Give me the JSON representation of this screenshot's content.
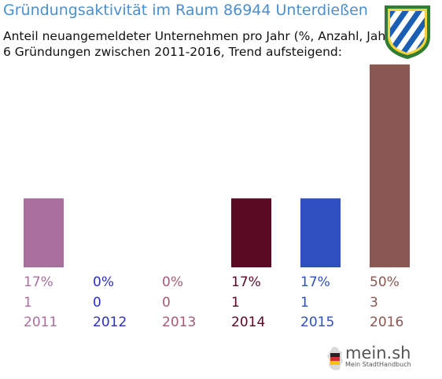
{
  "header": {
    "title": "Gründungsaktivität im Raum 86944 Unterdießen",
    "subtitle_line1": "Anteil neuangemeldeter Unternehmen pro Jahr (%, Anzahl, Jahr)",
    "subtitle_line2": "6 Gründungen zwischen 2011-2016, Trend aufsteigend:"
  },
  "crest": {
    "icon": "bavaria-crest-icon",
    "colors": [
      "#1a5fb4",
      "#ffffff",
      "#2e7d32"
    ]
  },
  "chart_data": {
    "type": "bar",
    "title": "Gründungsaktivität im Raum 86944 Unterdießen",
    "categories": [
      "2011",
      "2012",
      "2013",
      "2014",
      "2015",
      "2016"
    ],
    "values": [
      17,
      0,
      0,
      17,
      17,
      50
    ],
    "counts": [
      1,
      0,
      0,
      1,
      1,
      3
    ],
    "percent_labels": [
      "17%",
      "0%",
      "0%",
      "17%",
      "17%",
      "50%"
    ],
    "count_labels": [
      "1",
      "0",
      "0",
      "1",
      "1",
      "3"
    ],
    "colors": [
      "#a96f9c",
      "#2b2fc0",
      "#a55a78",
      "#5a0a22",
      "#2e4fbe",
      "#8b5752"
    ],
    "ylim": [
      0,
      50
    ],
    "grid": false,
    "legend": "none"
  },
  "brand": {
    "name": "mein.sh",
    "tagline": "Mein StadtHandbuch",
    "icon": "germany-map-icon"
  }
}
